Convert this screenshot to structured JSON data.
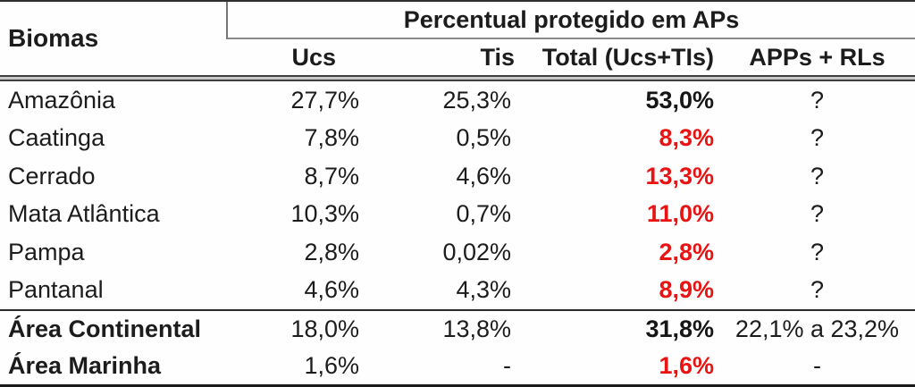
{
  "colors": {
    "accent_red": "#e81313",
    "text": "#1c1c1c"
  },
  "table": {
    "corner_header": "Biomas",
    "group_header": "Percentual protegido em APs",
    "sub_headers": {
      "ucs": "Ucs",
      "tis": "Tis",
      "total": "Total (Ucs+TIs)",
      "apps": "APPs + RLs"
    },
    "rows": [
      {
        "label": "Amazônia",
        "ucs": "27,7%",
        "tis": "25,3%",
        "total": "53,0%",
        "total_class": "dark",
        "apps": "?"
      },
      {
        "label": "Caatinga",
        "ucs": "7,8%",
        "tis": "0,5%",
        "total": "8,3%",
        "total_class": "red",
        "apps": "?"
      },
      {
        "label": "Cerrado",
        "ucs": "8,7%",
        "tis": "4,6%",
        "total": "13,3%",
        "total_class": "red",
        "apps": "?"
      },
      {
        "label": "Mata Atlântica",
        "ucs": "10,3%",
        "tis": "0,7%",
        "total": "11,0%",
        "total_class": "red",
        "apps": "?"
      },
      {
        "label": "Pampa",
        "ucs": "2,8%",
        "tis": "0,02%",
        "total": "2,8%",
        "total_class": "red",
        "apps": "?"
      },
      {
        "label": "Pantanal",
        "ucs": "4,6%",
        "tis": "4,3%",
        "total": "8,9%",
        "total_class": "red",
        "apps": "?"
      },
      {
        "label": "Área Continental",
        "ucs": "18,0%",
        "tis": "13,8%",
        "total": "31,8%",
        "total_class": "dark",
        "apps": "22,1% a 23,2%"
      },
      {
        "label": "Área Marinha",
        "ucs": "1,6%",
        "tis": "-",
        "total": "1,6%",
        "total_class": "red",
        "apps": "-"
      }
    ]
  },
  "chart_data": {
    "type": "table",
    "title": "Percentual protegido em APs",
    "columns": [
      "Biomas",
      "Ucs",
      "Tis",
      "Total (Ucs+TIs)",
      "APPs + RLs"
    ],
    "rows": [
      [
        "Amazônia",
        "27,7%",
        "25,3%",
        "53,0%",
        "?"
      ],
      [
        "Caatinga",
        "7,8%",
        "0,5%",
        "8,3%",
        "?"
      ],
      [
        "Cerrado",
        "8,7%",
        "4,6%",
        "13,3%",
        "?"
      ],
      [
        "Mata Atlântica",
        "10,3%",
        "0,7%",
        "11,0%",
        "?"
      ],
      [
        "Pampa",
        "2,8%",
        "0,02%",
        "2,8%",
        "?"
      ],
      [
        "Pantanal",
        "4,6%",
        "4,3%",
        "8,9%",
        "?"
      ],
      [
        "Área Continental",
        "18,0%",
        "13,8%",
        "31,8%",
        "22,1% a 23,2%"
      ],
      [
        "Área Marinha",
        "1,6%",
        "-",
        "1,6%",
        "-"
      ]
    ],
    "notes": "Totals column bold; value 53,0% and 31,8% in black, other totals in red. Question marks in APPs + RLs column."
  }
}
